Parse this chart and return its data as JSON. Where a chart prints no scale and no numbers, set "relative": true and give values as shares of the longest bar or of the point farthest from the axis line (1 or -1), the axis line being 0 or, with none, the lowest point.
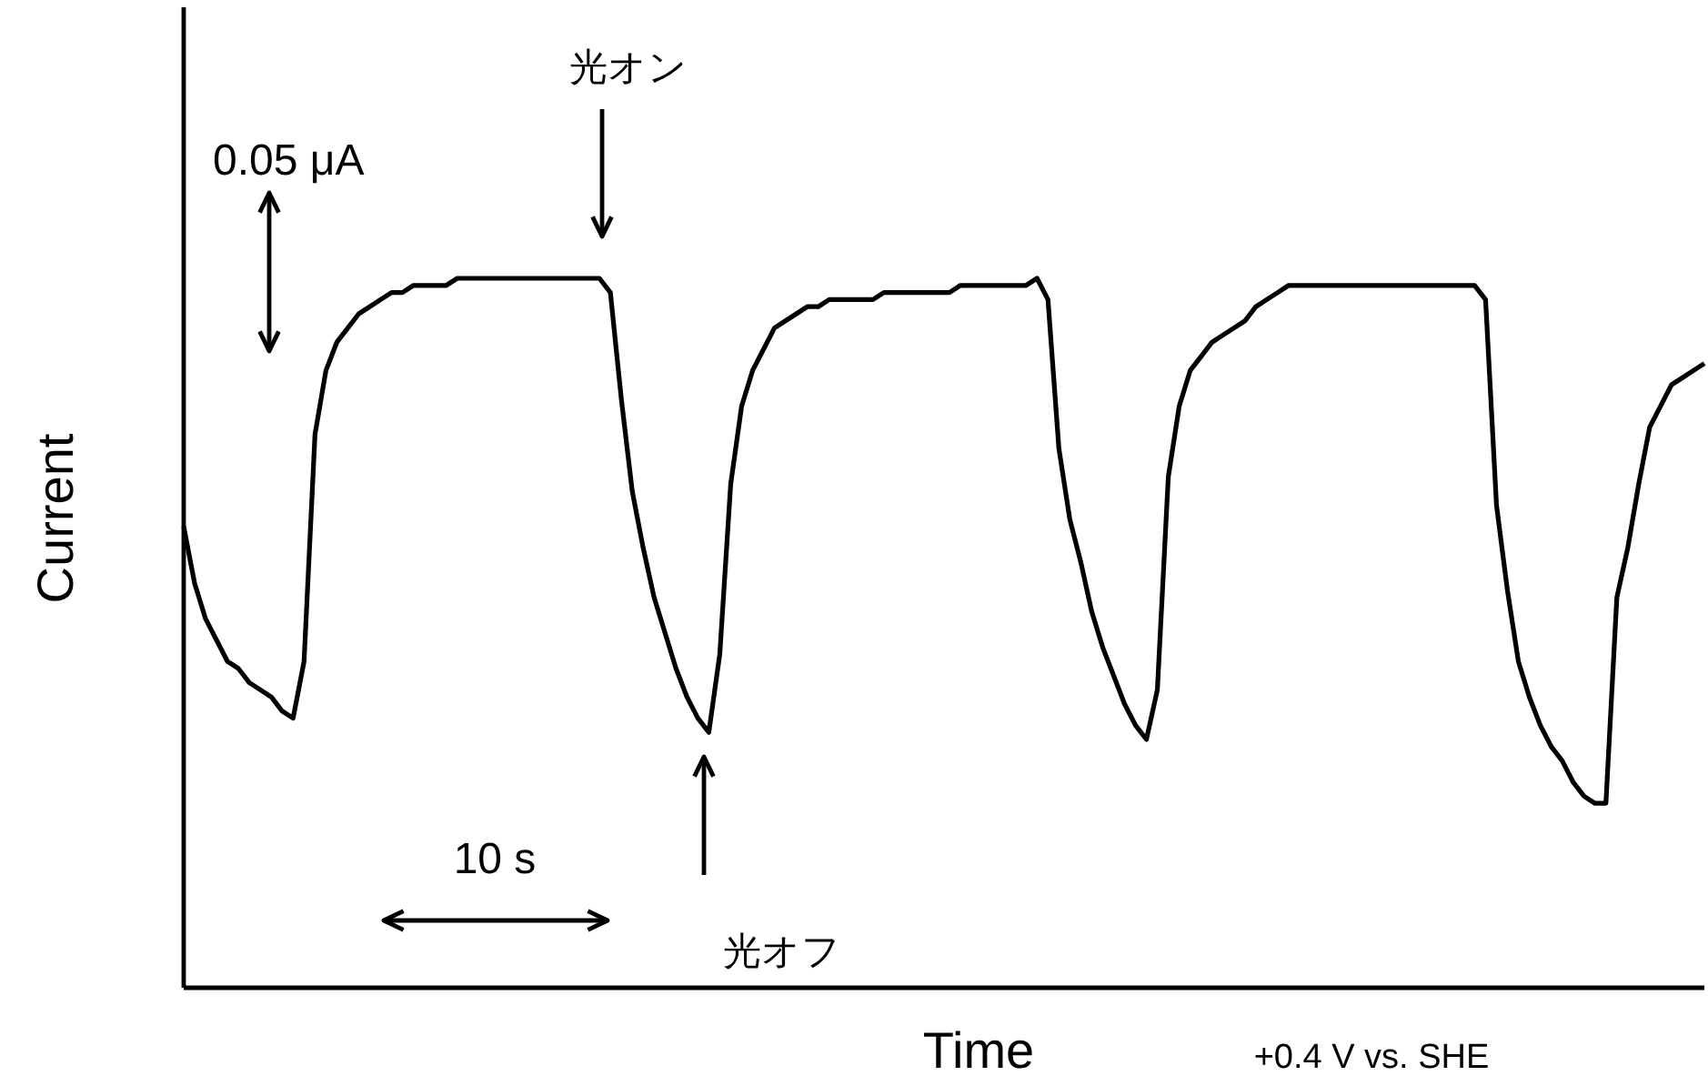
{
  "chart_data": {
    "type": "line",
    "relative": true,
    "xlabel": "Time",
    "ylabel": "Current",
    "line_style": "solid",
    "marker": "none",
    "annotations": [
      "0.05 μA",
      "光オン",
      "10 s",
      "光オフ",
      "+0.4 V vs. SHE"
    ],
    "categories": [
      null,
      null,
      null,
      null,
      null,
      null,
      null,
      null,
      null,
      null,
      null,
      null,
      null,
      null,
      null,
      null,
      null,
      null,
      null,
      null,
      null,
      null,
      null,
      null,
      null,
      null,
      null,
      null,
      null,
      null,
      null,
      null,
      null,
      null,
      null,
      null,
      null,
      null,
      null,
      null,
      null,
      null,
      null,
      null,
      null,
      null,
      null,
      null,
      null,
      null,
      null,
      null,
      null,
      null,
      null,
      null,
      null,
      null,
      null,
      null,
      null,
      null,
      null,
      null,
      null,
      null,
      null,
      null,
      null,
      null,
      null,
      null,
      null,
      null,
      null,
      null,
      null,
      null,
      null,
      null,
      null,
      null,
      null,
      null,
      null,
      null,
      null,
      null,
      null,
      null,
      null,
      null,
      null,
      null,
      null,
      null,
      null,
      null,
      null,
      null,
      null,
      null,
      null,
      null,
      null,
      null,
      null,
      null,
      null,
      null,
      null,
      null,
      null,
      null,
      null,
      null,
      null,
      null,
      null,
      null,
      null,
      null,
      null,
      null,
      null,
      null,
      null,
      null,
      null,
      null,
      null,
      null,
      null,
      null,
      null,
      null,
      null,
      null,
      null,
      null
    ],
    "series": [
      {
        "color": "#000000",
        "values": [
          0.65,
          0.57,
          0.52,
          0.49,
          0.46,
          0.45,
          0.43,
          0.42,
          0.41,
          0.39,
          0.38,
          0.46,
          0.78,
          0.87,
          0.91,
          0.93,
          0.95,
          0.96,
          0.97,
          0.98,
          0.98,
          0.99,
          0.99,
          0.99,
          0.99,
          1,
          1,
          1,
          1,
          1,
          1,
          1,
          1,
          1,
          1,
          1,
          1,
          1,
          1,
          0.98,
          0.83,
          0.7,
          0.62,
          0.55,
          0.5,
          0.45,
          0.41,
          0.38,
          0.36,
          0.47,
          0.71,
          0.82,
          0.87,
          0.9,
          0.93,
          0.94,
          0.95,
          0.96,
          0.96,
          0.97,
          0.97,
          0.97,
          0.97,
          0.97,
          0.98,
          0.98,
          0.98,
          0.98,
          0.98,
          0.98,
          0.98,
          0.99,
          0.99,
          0.99,
          0.99,
          0.99,
          0.99,
          0.99,
          1,
          0.97,
          0.76,
          0.66,
          0.6,
          0.53,
          0.48,
          0.44,
          0.4,
          0.37,
          0.35,
          0.42,
          0.72,
          0.82,
          0.87,
          0.89,
          0.91,
          0.92,
          0.93,
          0.94,
          0.96,
          0.97,
          0.98,
          0.99,
          0.99,
          0.99,
          0.99,
          0.99,
          0.99,
          0.99,
          0.99,
          0.99,
          0.99,
          0.99,
          0.99,
          0.99,
          0.99,
          0.99,
          0.99,
          0.99,
          0.99,
          0.97,
          0.68,
          0.56,
          0.46,
          0.41,
          0.37,
          0.34,
          0.32,
          0.29,
          0.27,
          0.26,
          0.26,
          0.55,
          0.62,
          0.71,
          0.79,
          0.82,
          0.85,
          0.86,
          0.87,
          0.88
        ]
      }
    ]
  }
}
